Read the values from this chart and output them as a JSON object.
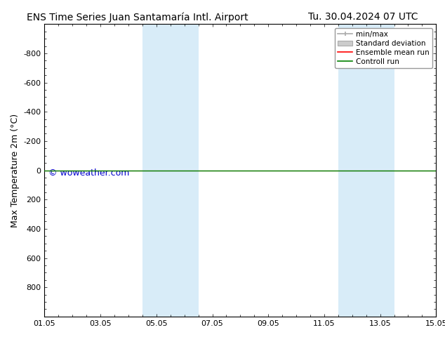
{
  "title_left": "ENS Time Series Juan Santamaría Intl. Airport",
  "title_right": "Tu. 30.04.2024 07 UTC",
  "ylabel": "Max Temperature 2m (°C)",
  "watermark": "© woweather.com",
  "xtick_labels": [
    "01.05",
    "03.05",
    "05.05",
    "07.05",
    "09.05",
    "11.05",
    "13.05",
    "15.05"
  ],
  "xtick_positions": [
    0,
    2,
    4,
    6,
    8,
    10,
    12,
    14
  ],
  "ylim_top": -1000,
  "ylim_bottom": 1000,
  "yticks": [
    -800,
    -600,
    -400,
    -200,
    0,
    200,
    400,
    600,
    800
  ],
  "background_color": "#ffffff",
  "plot_bg_color": "#ffffff",
  "shaded_bands": [
    {
      "x_start": 3.5,
      "x_end": 5.5,
      "color": "#d8ecf8"
    },
    {
      "x_start": 10.5,
      "x_end": 12.5,
      "color": "#d8ecf8"
    }
  ],
  "control_run_y": 0,
  "control_run_color": "#008000",
  "ensemble_mean_color": "#ff0000",
  "minmax_color": "#aaaaaa",
  "stddev_color": "#cccccc",
  "legend_labels": [
    "min/max",
    "Standard deviation",
    "Ensemble mean run",
    "Controll run"
  ],
  "title_fontsize": 10,
  "tick_fontsize": 8,
  "ylabel_fontsize": 9,
  "watermark_fontsize": 9,
  "watermark_color": "#0000cc"
}
